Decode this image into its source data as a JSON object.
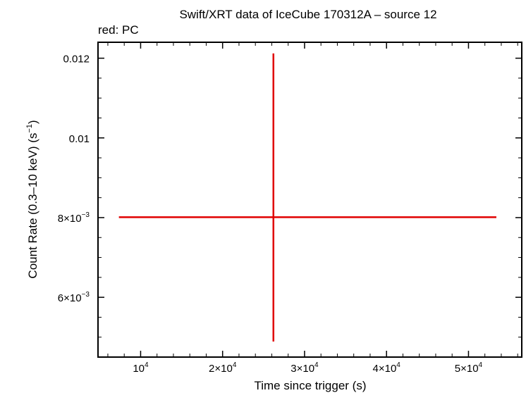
{
  "chart_data": {
    "type": "scatter",
    "title": "Swift/XRT data of IceCube 170312A – source 12",
    "subtitle": "red: PC",
    "xlabel": "Time since trigger (s)",
    "ylabel_main": "Count Rate (0.3–10 keV) (s",
    "ylabel_sup": "−1",
    "ylabel_close": ")",
    "xlim": [
      4800,
      56500
    ],
    "ylim": [
      0.0045,
      0.0124
    ],
    "grid": false,
    "xticks": [
      {
        "value": 10000,
        "mant": "",
        "exp": "4"
      },
      {
        "value": 20000,
        "mant": "2×",
        "exp": "4"
      },
      {
        "value": 30000,
        "mant": "3×",
        "exp": "4"
      },
      {
        "value": 40000,
        "mant": "4×",
        "exp": "4"
      },
      {
        "value": 50000,
        "mant": "5×",
        "exp": "4"
      }
    ],
    "yticks": [
      {
        "value": 0.006,
        "text": "6×10",
        "exp": "−3"
      },
      {
        "value": 0.008,
        "text": "8×10",
        "exp": "−3"
      },
      {
        "value": 0.01,
        "text": "0.01",
        "exp": ""
      },
      {
        "value": 0.012,
        "text": "0.012",
        "exp": ""
      }
    ],
    "series": [
      {
        "color": "#e00000",
        "points": [
          {
            "x": 26200,
            "y": 0.00801,
            "xerr_low": 18850,
            "xerr_high": 27200,
            "yerr_low": 0.00312,
            "yerr_high": 0.00411
          }
        ]
      }
    ]
  }
}
